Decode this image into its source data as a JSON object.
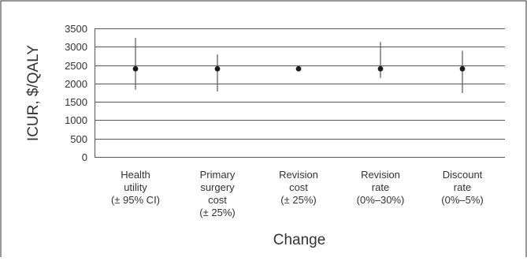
{
  "chart_data": {
    "type": "scatter",
    "subtype": "point-with-range",
    "xlabel": "Change",
    "ylabel": "ICUR, $/QALY",
    "ylim": [
      0,
      3500
    ],
    "yticks": [
      0,
      500,
      1000,
      1500,
      2000,
      2500,
      3000,
      3500
    ],
    "grid": "horizontal",
    "categories": [
      [
        "Health",
        "utility",
        "(± 95% CI)"
      ],
      [
        "Primary",
        "surgery",
        "cost",
        "(± 25%)"
      ],
      [
        "Revision",
        "cost",
        "(± 25%)"
      ],
      [
        "Revision",
        "rate",
        "(0%–30%)"
      ],
      [
        "Discount",
        "rate",
        "(0%–5%)"
      ]
    ],
    "values": [
      2400,
      2400,
      2400,
      2400,
      2400
    ],
    "low": [
      1830,
      1780,
      2400,
      2150,
      1740
    ],
    "high": [
      3240,
      2790,
      2400,
      3130,
      2890
    ],
    "colors": {
      "point": "#1a1a1a",
      "line": "#555555",
      "grid": "#555555",
      "frame": "#333333"
    }
  }
}
